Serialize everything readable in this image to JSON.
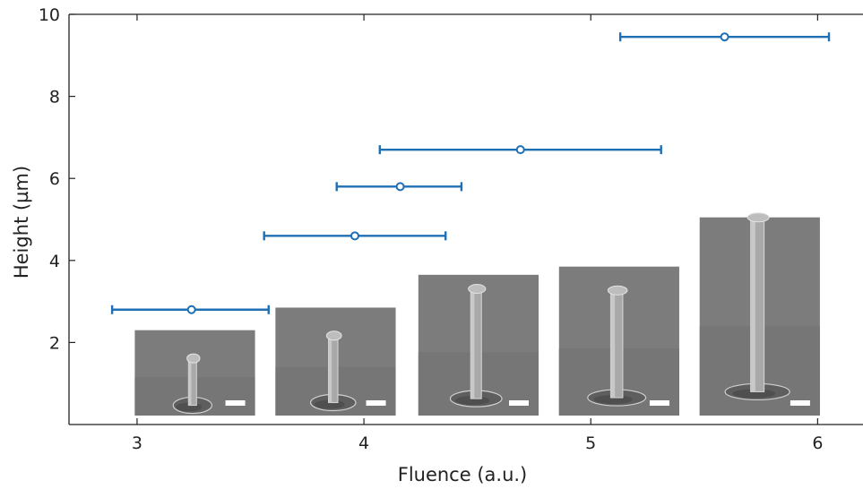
{
  "chart_data": {
    "type": "scatter",
    "title": "",
    "xlabel": "Fluence (a.u.)",
    "ylabel": "Height (µm)",
    "xlim": [
      2.7,
      6.2
    ],
    "ylim": [
      0,
      10
    ],
    "x_ticks": [
      3,
      4,
      5,
      6
    ],
    "y_ticks": [
      2,
      4,
      6,
      8,
      10
    ],
    "x_tick_labels": [
      "3",
      "4",
      "5",
      "6"
    ],
    "y_tick_labels": [
      "2",
      "4",
      "6",
      "8",
      "10"
    ],
    "grid": false,
    "legend": "none",
    "marker": "open-circle",
    "errorbar": "horizontal",
    "series_color": "#1f6fb4",
    "points": [
      {
        "x": 3.24,
        "y": 2.8,
        "x_low": 2.89,
        "x_high": 3.58
      },
      {
        "x": 3.96,
        "y": 4.6,
        "x_low": 3.56,
        "x_high": 4.36
      },
      {
        "x": 4.16,
        "y": 5.8,
        "x_low": 3.88,
        "x_high": 4.43
      },
      {
        "x": 4.69,
        "y": 6.7,
        "x_low": 4.07,
        "x_high": 5.31
      },
      {
        "x": 5.59,
        "y": 9.45,
        "x_low": 5.13,
        "x_high": 6.05
      }
    ],
    "insets": [
      {
        "name": "pillar-1",
        "x_from": 2.99,
        "x_to": 3.52,
        "y_top": 2.3,
        "pillar_height": 0.55
      },
      {
        "name": "pillar-2",
        "x_from": 3.61,
        "x_to": 4.14,
        "y_top": 2.85,
        "pillar_height": 0.62
      },
      {
        "name": "pillar-3",
        "x_from": 4.24,
        "x_to": 4.77,
        "y_top": 3.65,
        "pillar_height": 0.78
      },
      {
        "name": "pillar-4",
        "x_from": 4.86,
        "x_to": 5.39,
        "y_top": 3.85,
        "pillar_height": 0.72
      },
      {
        "name": "pillar-5",
        "x_from": 5.48,
        "x_to": 6.01,
        "y_top": 5.05,
        "pillar_height": 0.88
      }
    ]
  }
}
